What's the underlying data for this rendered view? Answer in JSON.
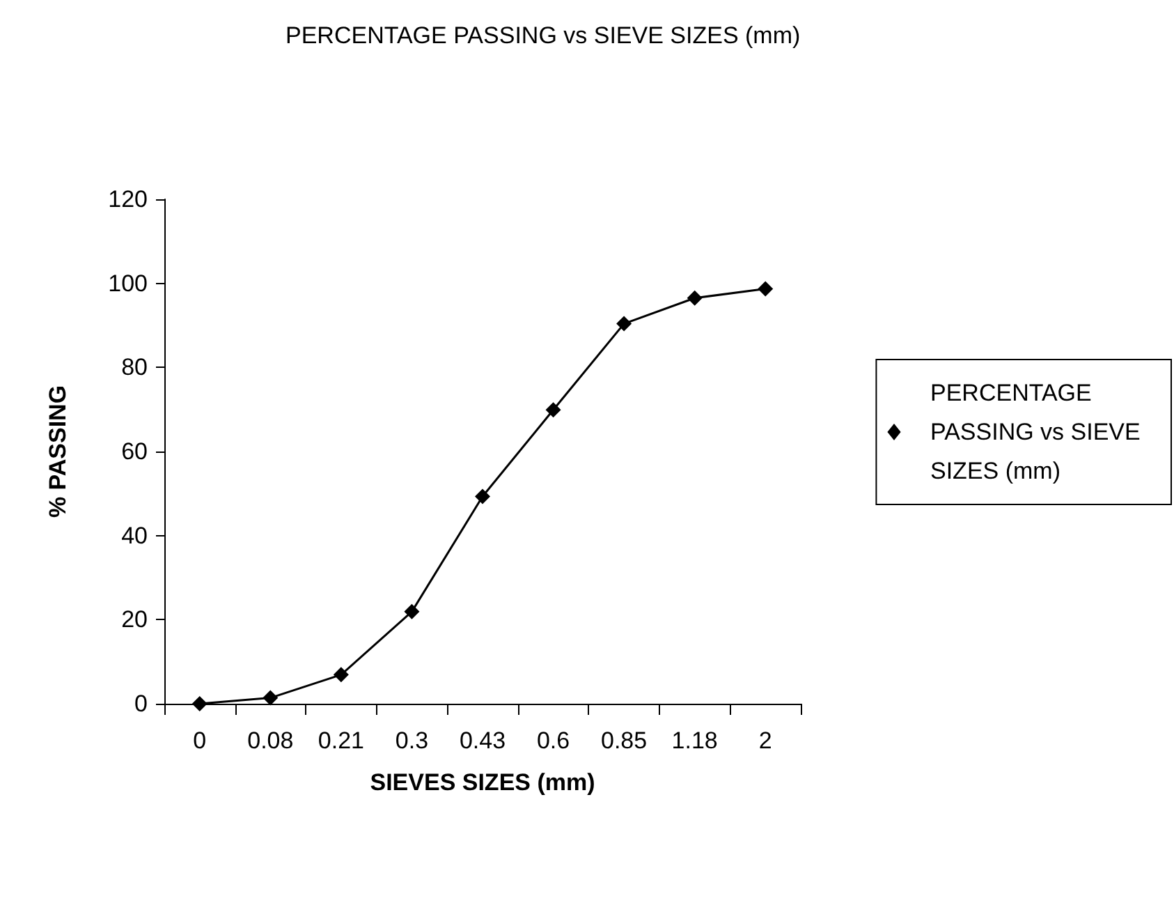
{
  "chart_data": {
    "type": "line",
    "title": "PERCENTAGE PASSING vs SIEVE SIZES (mm)",
    "xlabel": "SIEVES SIZES (mm)",
    "ylabel": "% PASSING",
    "categories": [
      "0",
      "0.08",
      "0.21",
      "0.3",
      "0.43",
      "0.6",
      "0.85",
      "1.18",
      "2"
    ],
    "series": [
      {
        "name": "PERCENTAGE PASSING vs SIEVE SIZES (mm)",
        "color": "#000000",
        "values": [
          0,
          1.4,
          6.9,
          21.9,
          49.3,
          69.9,
          90.4,
          96.5,
          98.7
        ]
      }
    ],
    "ylim": [
      0,
      120
    ],
    "yticks": [
      0,
      20,
      40,
      60,
      80,
      100,
      120
    ],
    "grid": false,
    "legend": "right",
    "marker": "diamond",
    "line_style": "solid"
  }
}
